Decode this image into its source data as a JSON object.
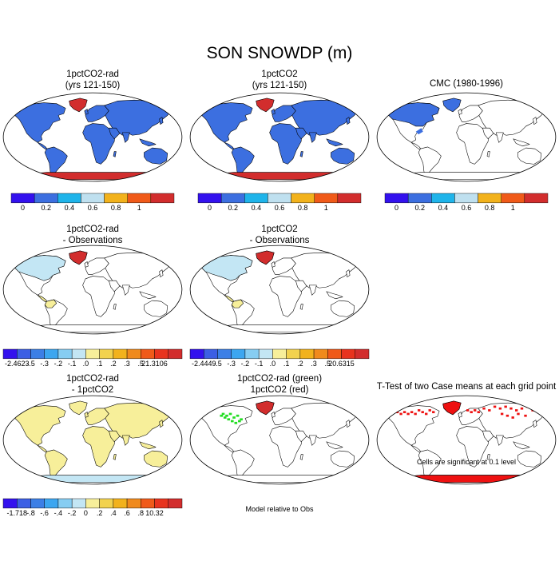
{
  "title": "SON SNOWDP (m)",
  "panels": [
    {
      "id": "p1",
      "title1": "1pctCO2-rad",
      "title2": "(yrs 121-150)",
      "fill": "mean"
    },
    {
      "id": "p2",
      "title1": "1pctCO2",
      "title2": "(yrs 121-150)",
      "fill": "mean"
    },
    {
      "id": "p3",
      "title1": "CMC (1980-1996)",
      "title2": "",
      "fill": "obs"
    },
    {
      "id": "p4",
      "title1": "1pctCO2-rad",
      "title2": "- Observations",
      "fill": "bias"
    },
    {
      "id": "p5",
      "title1": "1pctCO2",
      "title2": "- Observations",
      "fill": "bias"
    },
    {
      "id": "p7",
      "title1": "1pctCO2-rad",
      "title2": "- 1pctCO2",
      "fill": "diff"
    },
    {
      "id": "p8",
      "title1": "1pctCO2-rad (green)",
      "title2": "1pctCO2 (red)",
      "fill": "relobs"
    },
    {
      "id": "p9",
      "title1": "T-Test of two Case means at each grid point",
      "title2": "",
      "fill": "ttest"
    }
  ],
  "colorbars": {
    "mean": {
      "colors": [
        "#3311ee",
        "#3c6fe0",
        "#1fb4ea",
        "#bfe0ef",
        "#f2b21c",
        "#f05a19",
        "#d22d2d"
      ],
      "labels": [
        "0",
        "0.2",
        "0.4",
        "0.6",
        "0.8",
        "1"
      ]
    },
    "bias_rad": {
      "colors": [
        "#3311ee",
        "#3c5fe4",
        "#3c7fe6",
        "#3ca6f0",
        "#86cdf2",
        "#c3e6f4",
        "#f7ef9a",
        "#f2d24e",
        "#f2b21c",
        "#f08a1c",
        "#f05a19",
        "#e8331e",
        "#d22d2d"
      ],
      "labels": [
        "-2.4623",
        "-.5",
        "-.3",
        "-.2",
        "-.1",
        ".0",
        ".1",
        ".2",
        ".3",
        ".5",
        "21.3106"
      ]
    },
    "bias_co2": {
      "colors": [
        "#3311ee",
        "#3c5fe4",
        "#3c7fe6",
        "#3ca6f0",
        "#86cdf2",
        "#c3e6f4",
        "#f7ef9a",
        "#f2d24e",
        "#f2b21c",
        "#f08a1c",
        "#f05a19",
        "#e8331e",
        "#d22d2d"
      ],
      "labels": [
        "-2.4449",
        "-.5",
        "-.3",
        "-.2",
        "-.1",
        ".0",
        ".1",
        ".2",
        ".3",
        ".5",
        "20.6315"
      ]
    },
    "diff": {
      "colors": [
        "#3311ee",
        "#3c5fe4",
        "#3c7fe6",
        "#3ca6f0",
        "#86cdf2",
        "#c3e6f4",
        "#f7ef9a",
        "#f2d24e",
        "#f2b21c",
        "#f08a1c",
        "#f05a19",
        "#e8331e",
        "#d22d2d"
      ],
      "labels": [
        "-1.718",
        "-.8",
        "-.6",
        "-.4",
        "-.2",
        "0",
        ".2",
        ".4",
        ".6",
        ".8",
        "10.32"
      ]
    }
  },
  "notes": {
    "relobs": "Model relative to Obs",
    "ttest": "Cells are significant at 0.1 level"
  },
  "colors": {
    "snow_blue": "#3c6fe0",
    "antarctic_red": "#d22d2d",
    "bias_yellow": "#f7ef9a",
    "bias_lightblue": "#c3e6f4",
    "green": "#22dd22",
    "sig_red": "#ee1111"
  }
}
